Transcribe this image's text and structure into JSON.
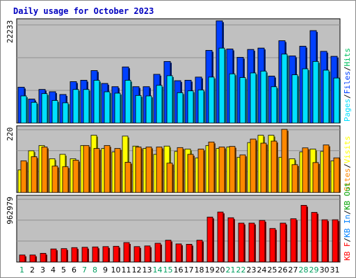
{
  "title": "Daily usage for October 2023",
  "colors": {
    "panel_bg": "#c0c0c0",
    "pages": "#00e0ff",
    "files": "#0040ff",
    "hits": "#00c060",
    "visits": "#ffff00",
    "sites": "#ff8800",
    "kb_in": "#0080ff",
    "kb_out": "#00a000",
    "kb_f": "#ff0000",
    "weekday_label": "#000000",
    "weekend_label": "#00a060"
  },
  "chart_data": [
    {
      "type": "bar",
      "ymax_label": "22233",
      "ymax": 22233,
      "right_labels": [
        {
          "text": "Pages",
          "color": "#00e0ff"
        },
        {
          "text": "/",
          "color": "#000000"
        },
        {
          "text": "Files",
          "color": "#0040ff"
        },
        {
          "text": "/",
          "color": "#000000"
        },
        {
          "text": "Hits",
          "color": "#00c060"
        }
      ],
      "series": [
        {
          "name": "Hits",
          "color": "#00c060",
          "values": [
            7800,
            5200,
            7300,
            6800,
            6200,
            9000,
            9300,
            11400,
            8600,
            7900,
            12200,
            7900,
            7900,
            10600,
            13400,
            9200,
            9300,
            10000,
            15800,
            22233,
            16100,
            14300,
            16000,
            16300,
            10200,
            17900,
            14600,
            16700,
            20100,
            15600,
            14500
          ]
        },
        {
          "name": "Files",
          "color": "#0040ff",
          "values": [
            7800,
            5200,
            7300,
            6800,
            6200,
            9000,
            9300,
            11400,
            8600,
            7900,
            12200,
            7900,
            7900,
            10600,
            13400,
            9200,
            9300,
            10000,
            15800,
            22233,
            16100,
            14300,
            16000,
            16300,
            10200,
            17900,
            14600,
            16700,
            20100,
            15600,
            14500
          ]
        },
        {
          "name": "Pages",
          "color": "#00e0ff",
          "values": [
            5900,
            4500,
            6400,
            4900,
            4400,
            7300,
            7300,
            9300,
            6800,
            6500,
            9300,
            6000,
            5900,
            8200,
            10300,
            6600,
            7000,
            7200,
            10000,
            16300,
            10700,
            9900,
            10900,
            11300,
            7900,
            15000,
            10500,
            11800,
            13400,
            11500,
            9800
          ]
        }
      ]
    },
    {
      "type": "bar",
      "ymax_label": "220",
      "ymax": 220,
      "right_labels": [
        {
          "text": "Sites",
          "color": "#ff8800"
        },
        {
          "text": "/",
          "color": "#000000"
        },
        {
          "text": "Visits",
          "color": "#ffff00"
        }
      ],
      "series": [
        {
          "name": "Visits",
          "color": "#ffff00",
          "values": [
            77,
            142,
            160,
            115,
            130,
            115,
            160,
            195,
            150,
            138,
            192,
            158,
            150,
            130,
            158,
            140,
            148,
            118,
            160,
            150,
            155,
            120,
            170,
            195,
            195,
            120,
            115,
            138,
            148,
            140,
            108
          ]
        },
        {
          "name": "Sites",
          "color": "#ff8800",
          "values": [
            108,
            122,
            155,
            90,
            88,
            110,
            160,
            150,
            160,
            150,
            103,
            155,
            155,
            155,
            100,
            153,
            130,
            148,
            172,
            155,
            157,
            128,
            182,
            168,
            175,
            215,
            95,
            152,
            102,
            162,
            118
          ]
        }
      ]
    },
    {
      "type": "bar",
      "ymax_label": "962979",
      "ymax": 962979,
      "right_labels": [
        {
          "text": "KB F",
          "color": "#ff0000"
        },
        {
          "text": "/",
          "color": "#000000"
        },
        {
          "text": "KB In",
          "color": "#0080ff"
        },
        {
          "text": "/",
          "color": "#000000"
        },
        {
          "text": "KB Out",
          "color": "#00a000"
        }
      ],
      "series": [
        {
          "name": "KB F",
          "color": "#ff0000",
          "values": [
            105000,
            105000,
            130000,
            195000,
            200000,
            215000,
            220000,
            225000,
            230000,
            235000,
            290000,
            230000,
            240000,
            280000,
            325000,
            270000,
            265000,
            325000,
            670000,
            745000,
            660000,
            580000,
            580000,
            620000,
            500000,
            580000,
            645000,
            845000,
            740000,
            630000,
            630000
          ]
        }
      ]
    }
  ],
  "days": [
    "1",
    "2",
    "3",
    "4",
    "5",
    "6",
    "7",
    "8",
    "9",
    "10",
    "11",
    "12",
    "13",
    "14",
    "15",
    "16",
    "17",
    "18",
    "19",
    "20",
    "21",
    "22",
    "23",
    "24",
    "25",
    "26",
    "27",
    "28",
    "29",
    "30",
    "31"
  ],
  "weekend_days": [
    1,
    7,
    8,
    14,
    15,
    21,
    22,
    28,
    29
  ]
}
